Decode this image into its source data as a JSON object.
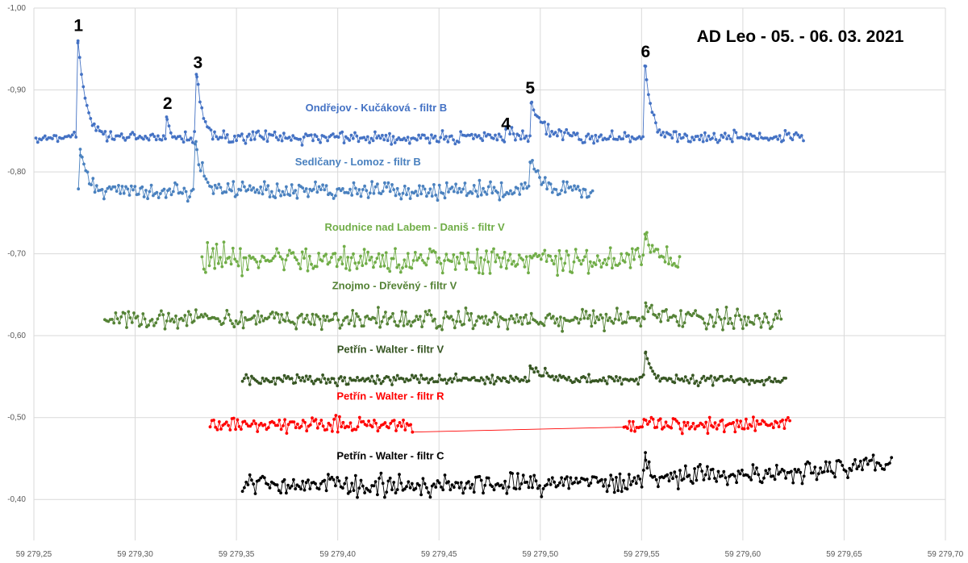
{
  "chart_data": {
    "type": "scatter",
    "title": "AD Leo - 05. - 06. 03. 2021",
    "xlabel": "",
    "ylabel": "",
    "xlim": [
      59279.25,
      59279.7
    ],
    "ylim": [
      -1.0,
      -0.35
    ],
    "y_axis_reversed": true,
    "grid": true,
    "legend": "none",
    "x_tick_labels": [
      "59 279,25",
      "59 279,30",
      "59 279,35",
      "59 279,40",
      "59 279,45",
      "59 279,50",
      "59 279,55",
      "59 279,60",
      "59 279,65",
      "59 279,70"
    ],
    "y_tick_labels": [
      "-1,00",
      "-0,90",
      "-0,80",
      "-0,70",
      "-0,60",
      "-0,50",
      "-0,40"
    ],
    "flare_labels": [
      {
        "label": "1",
        "x": 59279.272,
        "y": -0.96
      },
      {
        "label": "2",
        "x": 59279.316,
        "y": -0.865
      },
      {
        "label": "3",
        "x": 59279.331,
        "y": -0.915
      },
      {
        "label": "4",
        "x": 59279.483,
        "y": -0.84
      },
      {
        "label": "5",
        "x": 59279.495,
        "y": -0.884
      },
      {
        "label": "6",
        "x": 59279.552,
        "y": -0.928
      }
    ],
    "series": [
      {
        "name": "Ondřejov - Kučáková - filtr B",
        "color": "#4472c4",
        "x_range": [
          59279.251,
          59279.63
        ],
        "baseline": -0.842,
        "noise": 0.006,
        "label_pos": {
          "x": 59279.419,
          "y": -0.874
        },
        "flares": [
          {
            "x": 59279.2718,
            "peak": -0.96,
            "decay": 0.004
          },
          {
            "x": 59279.3155,
            "peak": -0.867,
            "decay": 0.002
          },
          {
            "x": 59279.3305,
            "peak": -0.916,
            "decay": 0.003
          },
          {
            "x": 59279.483,
            "peak": -0.852,
            "decay": 0.002
          },
          {
            "x": 59279.4955,
            "peak": -0.884,
            "decay": 0.006
          },
          {
            "x": 59279.552,
            "peak": -0.929,
            "decay": 0.003
          }
        ]
      },
      {
        "name": "Sedlčany - Lomoz - filtr B",
        "color": "#4a81bf",
        "x_range": [
          59279.272,
          59279.526
        ],
        "baseline": -0.777,
        "noise": 0.009,
        "label_pos": {
          "x": 59279.41,
          "y": -0.808
        },
        "flares": [
          {
            "x": 59279.273,
            "peak": -0.82,
            "decay": 0.004
          },
          {
            "x": 59279.33,
            "peak": -0.837,
            "decay": 0.003
          },
          {
            "x": 59279.495,
            "peak": -0.812,
            "decay": 0.006
          }
        ]
      },
      {
        "name": "Roudnice nad Labem - Daniš - filtr V",
        "color": "#70ad47",
        "x_range": [
          59279.333,
          59279.569
        ],
        "baseline": -0.694,
        "noise": 0.014,
        "label_pos": {
          "x": 59279.438,
          "y": -0.728
        },
        "flares": [
          {
            "x": 59279.552,
            "peak": -0.718,
            "decay": 0.003
          }
        ]
      },
      {
        "name": "Znojmo - Dřevěný - filtr V",
        "color": "#548235",
        "x_range": [
          59279.285,
          59279.619
        ],
        "baseline": -0.62,
        "noise": 0.01,
        "label_pos": {
          "x": 59279.428,
          "y": -0.657
        },
        "flares": [
          {
            "x": 59279.552,
            "peak": -0.64,
            "decay": 0.003
          }
        ]
      },
      {
        "name": "Petřín - Walter - filtr V",
        "color": "#375623",
        "x_range": [
          59279.353,
          59279.622
        ],
        "baseline": -0.546,
        "noise": 0.005,
        "label_pos": {
          "x": 59279.426,
          "y": -0.579
        },
        "flares": [
          {
            "x": 59279.552,
            "peak": -0.58,
            "decay": 0.003
          },
          {
            "x": 59279.495,
            "peak": -0.563,
            "decay": 0.008
          }
        ]
      },
      {
        "name": "Petřín - Walter - filtr R",
        "color": "#ff0000",
        "x_range": [
          59279.337,
          59279.624
        ],
        "gap": [
          59279.437,
          59279.541
        ],
        "baseline": -0.491,
        "noise": 0.008,
        "label_pos": {
          "x": 59279.426,
          "y": -0.522
        },
        "flares": []
      },
      {
        "name": "Petřín - Walter - filtr C",
        "color": "#000000",
        "x_range": [
          59279.353,
          59279.674
        ],
        "baseline": -0.418,
        "noise": 0.011,
        "trend_end": -0.44,
        "label_pos": {
          "x": 59279.426,
          "y": -0.449
        },
        "flares": [
          {
            "x": 59279.552,
            "peak": -0.448,
            "decay": 0.002
          }
        ]
      }
    ]
  }
}
